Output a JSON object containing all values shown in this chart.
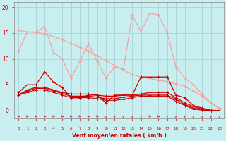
{
  "title": "",
  "xlabel": "Vent moyen/en rafales ( km/h )",
  "ylabel": "",
  "bg_color": "#c8eef0",
  "grid_color": "#a0d0d4",
  "x": [
    0,
    1,
    2,
    3,
    4,
    5,
    6,
    7,
    8,
    9,
    10,
    11,
    12,
    13,
    14,
    15,
    16,
    17,
    18,
    19,
    20,
    21,
    22,
    23
  ],
  "series": [
    {
      "y": [
        15.5,
        15.2,
        15.1,
        14.8,
        14.3,
        13.7,
        13.0,
        12.3,
        11.5,
        10.6,
        9.7,
        8.7,
        7.8,
        7.0,
        6.5,
        6.2,
        5.9,
        5.6,
        5.2,
        4.7,
        3.8,
        2.8,
        1.5,
        0.5
      ],
      "color": "#ff9999",
      "linewidth": 0.8,
      "marker": "+"
    },
    {
      "y": [
        11.5,
        15.2,
        15.2,
        16.2,
        11.2,
        10.0,
        6.3,
        9.5,
        13.0,
        9.5,
        6.3,
        8.5,
        8.0,
        18.5,
        15.2,
        18.8,
        18.5,
        15.0,
        8.5,
        6.3,
        5.0,
        3.2,
        1.5,
        0.3
      ],
      "color": "#ff9999",
      "linewidth": 0.8,
      "marker": "+"
    },
    {
      "y": [
        3.5,
        5.0,
        5.0,
        7.5,
        5.5,
        4.5,
        2.5,
        2.5,
        3.0,
        3.0,
        1.5,
        3.0,
        3.0,
        3.0,
        6.5,
        6.5,
        6.5,
        6.5,
        3.0,
        2.5,
        1.0,
        0.5,
        0.0,
        0.0
      ],
      "color": "#cc0000",
      "linewidth": 0.9,
      "marker": "+"
    },
    {
      "y": [
        3.0,
        4.0,
        4.5,
        4.5,
        4.0,
        3.5,
        3.2,
        3.2,
        3.2,
        3.0,
        2.8,
        2.8,
        3.0,
        3.0,
        3.2,
        3.5,
        3.5,
        3.5,
        2.5,
        1.5,
        0.8,
        0.3,
        0.1,
        0.0
      ],
      "color": "#cc0000",
      "linewidth": 0.9,
      "marker": "+"
    },
    {
      "y": [
        3.0,
        3.8,
        4.3,
        4.3,
        3.8,
        3.3,
        2.8,
        2.8,
        2.8,
        2.6,
        2.3,
        2.3,
        2.6,
        2.8,
        3.0,
        3.0,
        3.0,
        3.0,
        2.2,
        1.2,
        0.5,
        0.2,
        0.0,
        0.0
      ],
      "color": "#cc0000",
      "linewidth": 0.9,
      "marker": "+"
    },
    {
      "y": [
        3.0,
        3.5,
        4.0,
        4.0,
        3.5,
        3.0,
        2.5,
        2.5,
        2.5,
        2.3,
        2.0,
        2.0,
        2.2,
        2.5,
        2.8,
        2.8,
        2.8,
        2.8,
        1.8,
        1.0,
        0.3,
        0.1,
        0.0,
        0.0
      ],
      "color": "#cc0000",
      "linewidth": 0.8,
      "marker": "+"
    }
  ],
  "ylim": [
    -1.5,
    21
  ],
  "xlim": [
    -0.5,
    23.5
  ],
  "yticks": [
    0,
    5,
    10,
    15,
    20
  ],
  "xticks": [
    0,
    1,
    2,
    3,
    4,
    5,
    6,
    7,
    8,
    9,
    10,
    11,
    12,
    13,
    14,
    15,
    16,
    17,
    18,
    19,
    20,
    21,
    22,
    23
  ],
  "tick_color": "#cc0000",
  "label_color": "#cc0000",
  "arrow_color": "#cc2222",
  "arrow_directions": [
    0,
    0,
    0,
    0,
    0,
    0,
    0,
    0,
    0,
    0,
    1,
    1,
    1,
    1,
    1,
    0,
    0,
    1,
    1,
    1,
    1,
    1,
    1,
    1
  ]
}
